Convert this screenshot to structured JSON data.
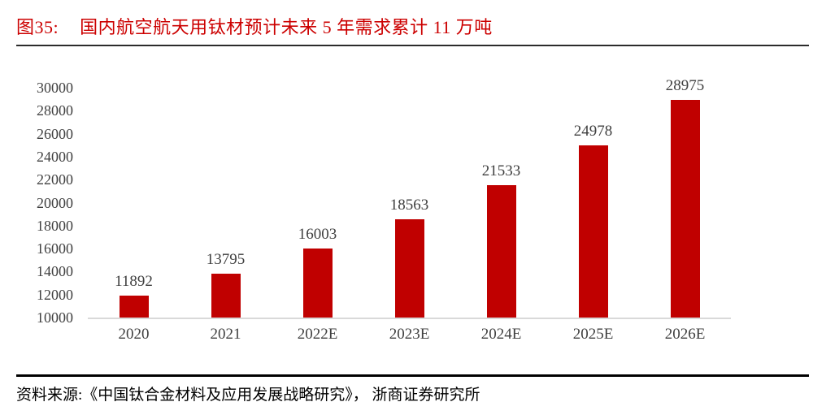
{
  "figure": {
    "label": "图35:",
    "title": "国内航空航天用钛材预计未来 5 年需求累计 11 万吨"
  },
  "source": {
    "text": "资料来源:《中国钛合金材料及应用发展战略研究》， 浙商证券研究所"
  },
  "colors": {
    "bar_red": "#C00000",
    "title_red": "#CC0000",
    "axis_text": "#404040",
    "baseline_gray": "#D9D9D9",
    "rule_dark": "#2b2b2b",
    "source_rule_black": "#000000"
  },
  "chart_data": {
    "type": "bar",
    "title": "国内航空航天用钛材预计未来 5 年需求累计 11 万吨",
    "categories": [
      "2020",
      "2021",
      "2022E",
      "2023E",
      "2024E",
      "2025E",
      "2026E"
    ],
    "values": [
      11892,
      13795,
      16003,
      18563,
      21533,
      24978,
      28975
    ],
    "data_labels": true,
    "bar_color": "#C00000",
    "xlabel": "",
    "ylabel": "",
    "ylim": [
      10000,
      30000
    ],
    "ytick_step": 2000,
    "yticks": [
      10000,
      12000,
      14000,
      16000,
      18000,
      20000,
      22000,
      24000,
      26000,
      28000,
      30000
    ],
    "grid": false,
    "legend": "none"
  }
}
